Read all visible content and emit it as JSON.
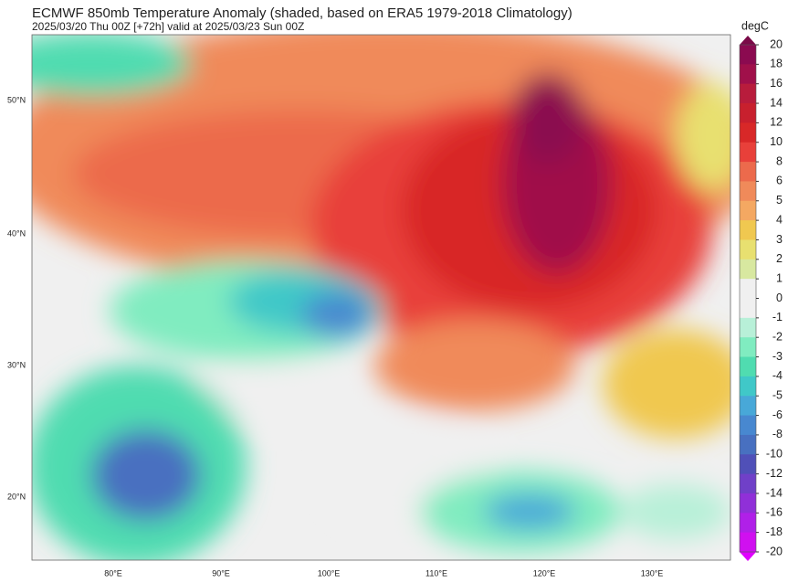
{
  "header": {
    "title": "ECMWF 850mb Temperature Anomaly (shaded, based on ERA5 1979-2018 Climatology)",
    "subtitle": "2025/03/20 Thu 00Z [+72h] valid at 2025/03/23 Sun 00Z"
  },
  "colorbar": {
    "unit": "degC",
    "levels": [
      20,
      18,
      16,
      14,
      12,
      10,
      8,
      6,
      5,
      4,
      3,
      2,
      1,
      0,
      -1,
      -2,
      -3,
      -4,
      -5,
      -6,
      -8,
      -10,
      -12,
      -14,
      -16,
      -18,
      -20
    ],
    "colors": [
      "#8b0a50",
      "#a0104a",
      "#b81c3c",
      "#c8202e",
      "#d82828",
      "#e8403a",
      "#ec6a4c",
      "#f08a5a",
      "#f4a862",
      "#f0c850",
      "#e8e070",
      "#d8e8a0",
      "#f0f0f0",
      "#f0f0f0",
      "#b8f0d8",
      "#80ecc0",
      "#50dcb0",
      "#40c8c8",
      "#48a8d8",
      "#4888d0",
      "#4870c0",
      "#5050b8",
      "#7040c8",
      "#9030d8",
      "#b020e8",
      "#d010f0"
    ],
    "over_color": "#7a0a48",
    "under_color": "#e000ff"
  },
  "lat_labels": [
    "50°N",
    "40°N",
    "30°N",
    "20°N"
  ],
  "lon_labels": [
    "80°E",
    "90°E",
    "100°E",
    "110°E",
    "120°E",
    "130°E"
  ]
}
